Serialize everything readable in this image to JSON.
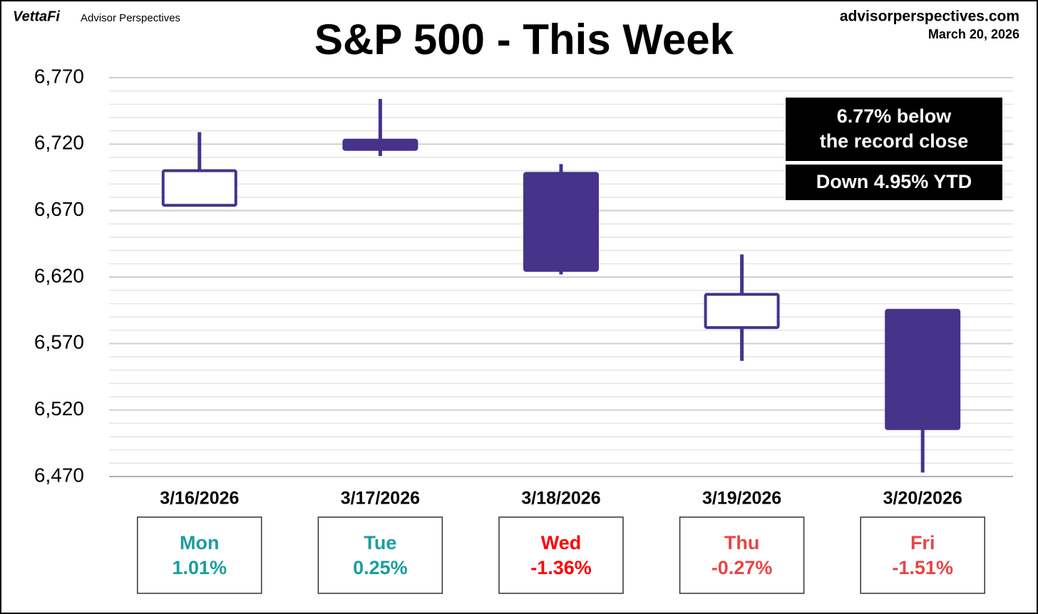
{
  "chart_data": {
    "type": "candlestick",
    "title": "S&P 500 - This Week",
    "brand": "VettaFi",
    "brand_subtitle": "Advisor Perspectives",
    "source": "advisorperspectives.com",
    "date": "March 20, 2026",
    "categories": [
      "3/16/2026",
      "3/17/2026",
      "3/18/2026",
      "3/19/2026",
      "3/20/2026"
    ],
    "open": [
      6674,
      6723,
      6698,
      6582,
      6595
    ],
    "high": [
      6729,
      6754,
      6705,
      6637,
      6595
    ],
    "low": [
      6674,
      6711,
      6622,
      6557,
      6473
    ],
    "close": [
      6700,
      6716,
      6625,
      6607,
      6506
    ],
    "color": "#46338a",
    "ylim": [
      6470,
      6770
    ],
    "yticks": [
      {
        "value": 6470,
        "label": "6,470"
      },
      {
        "value": 6520,
        "label": "6,520"
      },
      {
        "value": 6570,
        "label": "6,570"
      },
      {
        "value": 6620,
        "label": "6,620"
      },
      {
        "value": 6670,
        "label": "6,670"
      },
      {
        "value": 6720,
        "label": "6,720"
      },
      {
        "value": 6770,
        "label": "6,770"
      }
    ],
    "minor_yticks": [
      6480,
      6490,
      6500,
      6510,
      6530,
      6540,
      6550,
      6560,
      6580,
      6590,
      6600,
      6610,
      6630,
      6640,
      6650,
      6660,
      6680,
      6690,
      6700,
      6710,
      6730,
      6740,
      6750,
      6760
    ],
    "grid": true,
    "days": [
      {
        "day": "Mon",
        "change": 1.01,
        "change_label": "1.01%",
        "color": "#1a9e9e"
      },
      {
        "day": "Tue",
        "change": 0.25,
        "change_label": "0.25%",
        "color": "#1a9e9e"
      },
      {
        "day": "Wed",
        "change": -1.36,
        "change_label": "-1.36%",
        "color": "#ff0000"
      },
      {
        "day": "Thu",
        "change": -0.27,
        "change_label": "-0.27%",
        "color": "#e84545"
      },
      {
        "day": "Fri",
        "change": -1.51,
        "change_label": "-1.51%",
        "color": "#e84545"
      }
    ],
    "annotations": [
      "6.77% below",
      "the record close",
      "Down 4.95% YTD"
    ]
  }
}
